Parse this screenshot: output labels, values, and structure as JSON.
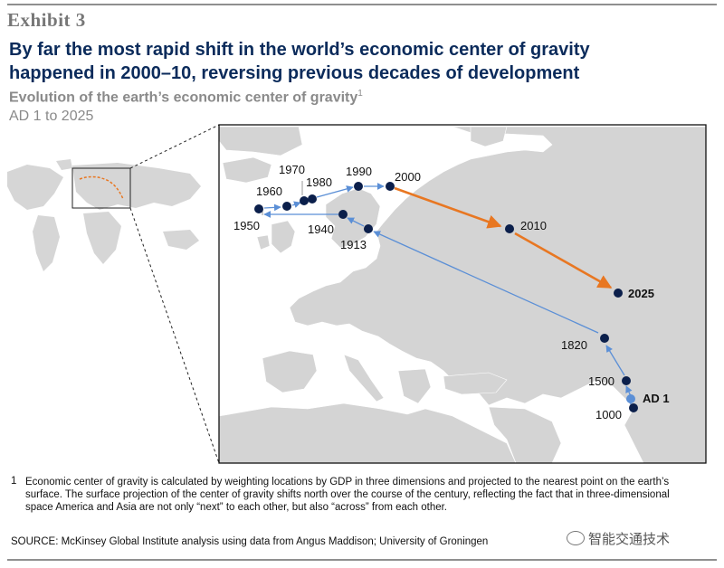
{
  "header": {
    "exhibit": "Exhibit 3",
    "title_line1": "By far the most rapid shift in the world’s economic center of gravity",
    "title_line2": "happened in 2000–10, reversing previous decades of development",
    "subtitle": "Evolution of the earth’s economic center of gravity",
    "subtitle_footnote_ref": "1",
    "period": "AD 1 to 2025"
  },
  "map": {
    "path_points": [
      {
        "label": "AD 1",
        "color": "#5b8fd6"
      },
      {
        "label": "1000",
        "color": "#0b1f4b"
      },
      {
        "label": "1500",
        "color": "#0b1f4b"
      },
      {
        "label": "1820",
        "color": "#0b1f4b"
      },
      {
        "label": "1913",
        "color": "#0b1f4b"
      },
      {
        "label": "1940",
        "color": "#0b1f4b"
      },
      {
        "label": "1950",
        "color": "#0b1f4b"
      },
      {
        "label": "1960",
        "color": "#0b1f4b"
      },
      {
        "label": "1970",
        "color": "#0b1f4b"
      },
      {
        "label": "1980",
        "color": "#0b1f4b"
      },
      {
        "label": "1990",
        "color": "#0b1f4b"
      },
      {
        "label": "2000",
        "color": "#0b1f4b"
      },
      {
        "label": "2010",
        "color": "#0b1f4b"
      },
      {
        "label": "2025",
        "color": "#0b1f4b"
      }
    ],
    "colors": {
      "historic_path": "#5b8fd6",
      "recent_path": "#e87722",
      "land": "#d4d4d4",
      "sea": "#ffffff",
      "point": "#0b1f4b",
      "title": "#0b2b5b"
    }
  },
  "footnote": {
    "number": "1",
    "text": "Economic center of gravity is calculated by weighting locations by GDP in three dimensions and projected to the nearest point on the earth’s surface. The surface projection of the center of gravity shifts north over the course of the century, reflecting the fact that in three-dimensional space America and Asia are not only “next” to each other, but also “across” from each other."
  },
  "source": "SOURCE: McKinsey Global Institute analysis using data from Angus Maddison; University of Groningen",
  "watermark": "智能交通技术"
}
